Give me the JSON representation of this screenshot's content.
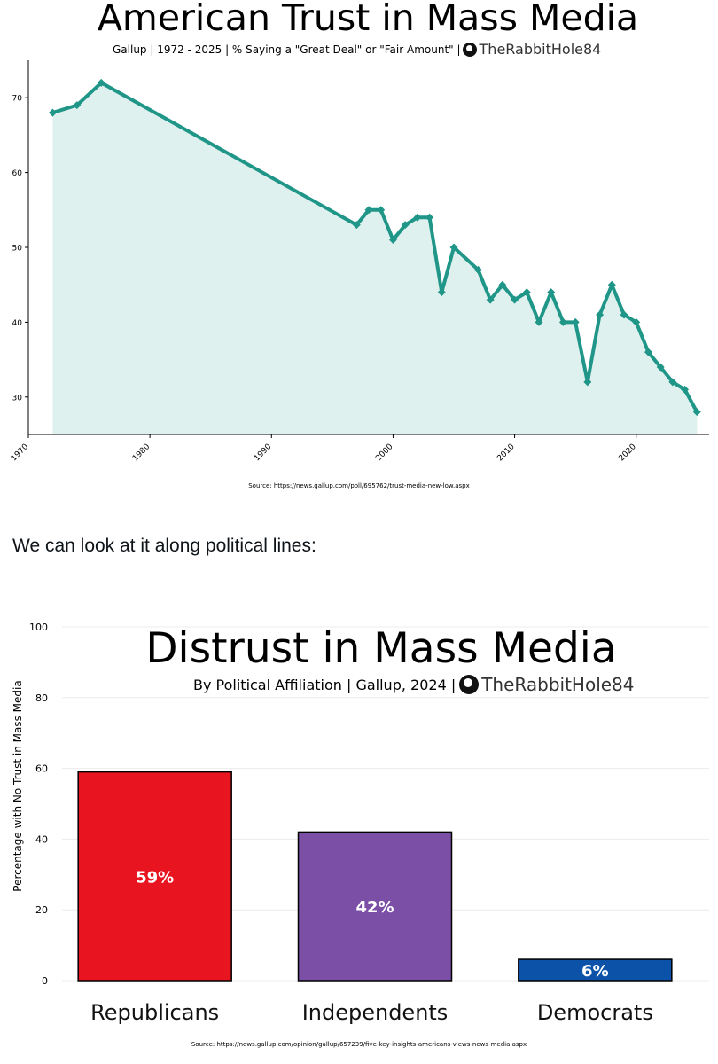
{
  "chart_data": [
    {
      "type": "area",
      "title": "American Trust in Mass Media",
      "subtitle": "Gallup | 1972 - 2025 | % Saying a \"Great Deal\" or \"Fair Amount\" |",
      "watermark": "TheRabbitHole84",
      "source": "Source: https://news.gallup.com/poll/695762/trust-media-new-low.aspx",
      "xlabel": "",
      "ylabel": "",
      "xlim": [
        1970,
        2026
      ],
      "ylim": [
        25,
        75
      ],
      "xticks": [
        "1970",
        "1980",
        "1990",
        "2000",
        "2010",
        "2020"
      ],
      "yticks": [
        "30",
        "40",
        "50",
        "60",
        "70"
      ],
      "grid": false,
      "line_color": "#1f9688",
      "fill_color": "#dff1ee",
      "series": [
        {
          "x": [
            1972,
            1974,
            1976,
            1997,
            1998,
            1999,
            2000,
            2001,
            2002,
            2003,
            2004,
            2005,
            2007,
            2008,
            2009,
            2010,
            2011,
            2012,
            2013,
            2014,
            2015,
            2016,
            2017,
            2018,
            2019,
            2020,
            2021,
            2022,
            2023,
            2024,
            2025
          ],
          "y": [
            68,
            69,
            72,
            53,
            55,
            55,
            51,
            53,
            54,
            54,
            44,
            50,
            47,
            43,
            45,
            43,
            44,
            40,
            44,
            40,
            40,
            32,
            41,
            45,
            41,
            40,
            36,
            34,
            32,
            31,
            28
          ]
        }
      ]
    },
    {
      "type": "bar",
      "title": "Distrust in Mass Media",
      "subtitle": "By Political Affiliation | Gallup, 2024 |",
      "watermark": "TheRabbitHole84",
      "source": "Source: https://news.gallup.com/opinion/gallup/657239/five-key-insights-americans-views-news-media.aspx",
      "xlabel": "",
      "ylabel": "Percentage with No Trust in Mass Media",
      "ylim": [
        0,
        100
      ],
      "yticks": [
        "0",
        "20",
        "40",
        "60",
        "80",
        "100"
      ],
      "grid": true,
      "categories": [
        "Republicans",
        "Independents",
        "Democrats"
      ],
      "values": [
        59,
        42,
        6
      ],
      "data_labels": [
        "59%",
        "42%",
        "6%"
      ],
      "colors": [
        "#e8141f",
        "#7b4fa6",
        "#0b52a8"
      ]
    }
  ],
  "prose": {
    "text": "We can look at it along political lines:"
  }
}
